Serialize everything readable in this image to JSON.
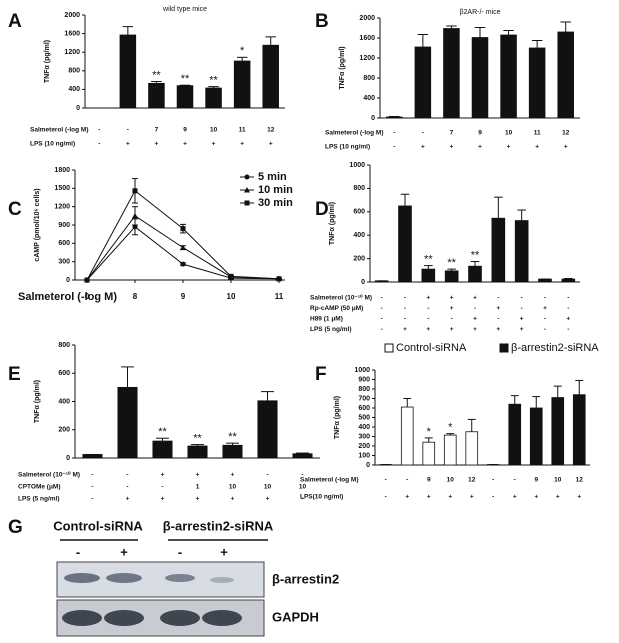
{
  "chart_data": [
    {
      "type": "bar",
      "panel": "A",
      "title": "wild type mice",
      "ylabel": "TNFα (pg/ml)",
      "ylim": [
        0,
        2000
      ],
      "yticks": [
        0,
        400,
        800,
        1200,
        1600,
        2000
      ],
      "color": "#111111",
      "values": [
        0,
        1570,
        530,
        480,
        430,
        1010,
        1350
      ],
      "errors": [
        0,
        180,
        40,
        10,
        30,
        80,
        180
      ],
      "annotations": [
        null,
        null,
        "**",
        "**",
        "**",
        "*",
        null
      ],
      "conditions": [
        {
          "label": "Salmeterol (-log M)",
          "values": [
            "-",
            "-",
            "7",
            "9",
            "10",
            "11",
            "12"
          ]
        },
        {
          "label": "LPS (10 ng/ml)",
          "values": [
            "-",
            "+",
            "+",
            "+",
            "+",
            "+",
            "+"
          ]
        }
      ]
    },
    {
      "type": "bar",
      "panel": "B",
      "title": "β2AR-/- mice",
      "ylabel": "TNFα (pg/ml)",
      "ylim": [
        0,
        2000
      ],
      "yticks": [
        0,
        400,
        800,
        1200,
        1600,
        2000
      ],
      "color": "#111111",
      "values": [
        20,
        1420,
        1790,
        1610,
        1660,
        1400,
        1720
      ],
      "errors": [
        10,
        250,
        50,
        200,
        90,
        150,
        200
      ],
      "conditions": [
        {
          "label": "Salmeterol (-log M)",
          "values": [
            "-",
            "-",
            "7",
            "9",
            "10",
            "11",
            "12"
          ]
        },
        {
          "label": "LPS (10 ng/ml)",
          "values": [
            "-",
            "+",
            "+",
            "+",
            "+",
            "+",
            "+"
          ]
        }
      ]
    },
    {
      "type": "line",
      "panel": "C",
      "ylabel": "cAMP (pmol/10⁶ cells)",
      "xlabel": "Salmeterol (-log M)",
      "ylim": [
        0,
        1800
      ],
      "yticks": [
        0,
        300,
        600,
        900,
        1200,
        1500,
        1800
      ],
      "categories": [
        "0",
        "8",
        "9",
        "10",
        "11"
      ],
      "series": [
        {
          "name": "5 min",
          "color": "#111111",
          "marker": "circle",
          "values": [
            0,
            870,
            260,
            30,
            20
          ],
          "errors": [
            0,
            130,
            20,
            10,
            5
          ]
        },
        {
          "name": "10 min",
          "color": "#111111",
          "marker": "triangle",
          "values": [
            0,
            1050,
            530,
            50,
            20
          ],
          "errors": [
            0,
            150,
            30,
            10,
            5
          ]
        },
        {
          "name": "30 min",
          "color": "#111111",
          "marker": "square",
          "values": [
            0,
            1460,
            840,
            60,
            20
          ],
          "errors": [
            0,
            200,
            70,
            10,
            5
          ]
        }
      ]
    },
    {
      "type": "bar",
      "panel": "D",
      "ylabel": "TNFα (pg/ml)",
      "ylim": [
        0,
        1000
      ],
      "yticks": [
        0,
        200,
        400,
        600,
        800,
        1000
      ],
      "color": "#111111",
      "values": [
        10,
        650,
        110,
        95,
        135,
        545,
        525,
        25,
        25
      ],
      "errors": [
        0,
        100,
        30,
        15,
        40,
        180,
        90,
        0,
        5
      ],
      "annotations": [
        null,
        null,
        "**",
        "**",
        "**",
        null,
        null,
        null,
        null
      ],
      "conditions": [
        {
          "label": "Salmeterol (10⁻¹⁰ M)",
          "values": [
            "-",
            "-",
            "+",
            "+",
            "+",
            "-",
            "-",
            "-",
            "-"
          ]
        },
        {
          "label": "Rp-cAMP (50 μM)",
          "values": [
            "-",
            "-",
            "-",
            "+",
            "-",
            "+",
            "-",
            "+",
            "-"
          ]
        },
        {
          "label": "H89 (1 μM)",
          "values": [
            "-",
            "-",
            "-",
            "-",
            "+",
            "-",
            "+",
            "-",
            "+"
          ]
        },
        {
          "label": "LPS (5 ng/ml)",
          "values": [
            "-",
            "+",
            "+",
            "+",
            "+",
            "+",
            "+",
            "-",
            "-"
          ]
        }
      ]
    },
    {
      "type": "bar",
      "panel": "E",
      "ylabel": "TNFα (pg/ml)",
      "ylim": [
        0,
        800
      ],
      "yticks": [
        0,
        200,
        400,
        600,
        800
      ],
      "color": "#111111",
      "values": [
        25,
        500,
        120,
        85,
        90,
        405,
        30
      ],
      "errors": [
        0,
        145,
        20,
        10,
        15,
        65,
        5
      ],
      "annotations": [
        null,
        null,
        "**",
        "**",
        "**",
        null,
        null
      ],
      "conditions": [
        {
          "label": "Salmeterol (10⁻¹⁰ M)",
          "values": [
            "-",
            "-",
            "+",
            "+",
            "+",
            "-",
            "-"
          ]
        },
        {
          "label": "CPTOMe (μM)",
          "values": [
            "-",
            "-",
            "-",
            "1",
            "10",
            "10",
            "10"
          ]
        },
        {
          "label": "LPS (5 ng/ml)",
          "values": [
            "-",
            "+",
            "+",
            "+",
            "+",
            "+",
            "-"
          ]
        }
      ]
    },
    {
      "type": "bar",
      "panel": "F",
      "ylabel": "TNFα (pg/ml)",
      "ylim": [
        0,
        1000
      ],
      "yticks": [
        0,
        100,
        200,
        300,
        400,
        500,
        600,
        700,
        800,
        900,
        1000
      ],
      "series": [
        {
          "name": "Control-siRNA",
          "color": "#ffffff",
          "values": [
            5,
            610,
            240,
            315,
            350,
            null,
            null,
            null,
            null,
            null
          ],
          "errors": [
            0,
            90,
            45,
            15,
            130,
            null,
            null,
            null,
            null,
            null
          ],
          "annotations": [
            null,
            null,
            "*",
            "*",
            null,
            null,
            null,
            null,
            null,
            null
          ]
        },
        {
          "name": "β-arrestin2-siRNA",
          "color": "#111111",
          "values": [
            null,
            null,
            null,
            null,
            null,
            5,
            640,
            600,
            710,
            740
          ],
          "errors": [
            null,
            null,
            null,
            null,
            null,
            0,
            90,
            120,
            120,
            150
          ]
        }
      ],
      "conditions": [
        {
          "label": "Salmeterol (-log M)",
          "values": [
            "-",
            "-",
            "9",
            "10",
            "12",
            "-",
            "-",
            "9",
            "10",
            "12"
          ]
        },
        {
          "label": "LPS(10 ng/ml)",
          "values": [
            "-",
            "+",
            "+",
            "+",
            "+",
            "-",
            "+",
            "+",
            "+",
            "+"
          ]
        }
      ]
    }
  ],
  "blot": {
    "panel": "G",
    "groups": [
      "Control-siRNA",
      "β-arrestin2-siRNA"
    ],
    "lanes": [
      "-",
      "+",
      "-",
      "+"
    ],
    "bands": [
      "β-arrestin2",
      "GAPDH"
    ]
  }
}
